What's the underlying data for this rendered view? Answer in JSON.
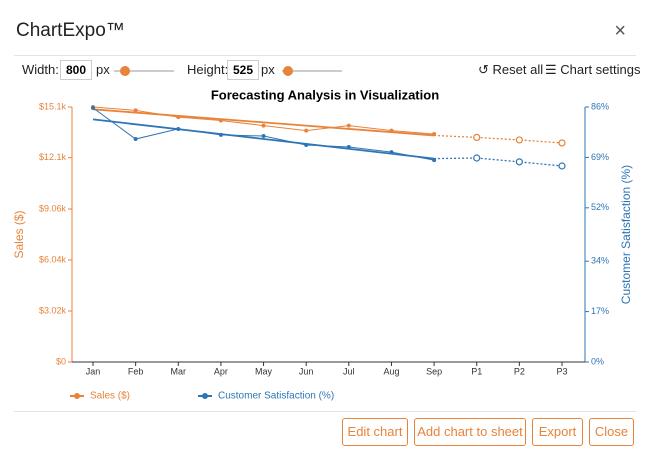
{
  "dialog": {
    "title": "ChartExpo™",
    "controls": {
      "width_label": "Width:",
      "width_value": "800",
      "width_unit": "px",
      "height_label": "Height:",
      "height_value": "525",
      "height_unit": "px",
      "reset": "Reset all",
      "settings": "Chart settings"
    },
    "buttons": [
      "Edit chart",
      "Add chart to sheet",
      "Export",
      "Close"
    ]
  },
  "chart_data": {
    "type": "line",
    "title": "Forecasting Analysis in Visualization",
    "y_label": "Sales ($)",
    "y2_label": "Customer Satisfaction (%)",
    "categories": [
      "Jan",
      "Feb",
      "Mar",
      "Apr",
      "May",
      "Jun",
      "Jul",
      "Aug",
      "Sep",
      "P1",
      "P2",
      "P3"
    ],
    "series": [
      {
        "name": "Sales ($)",
        "color": "#e8833a",
        "axis": "y",
        "values": [
          15100,
          14900,
          14500,
          14300,
          14000,
          13700,
          14000,
          13700,
          13500,
          null,
          null,
          null
        ],
        "forecast": [
          null,
          null,
          null,
          null,
          null,
          null,
          null,
          null,
          null,
          13300,
          13150,
          12970
        ]
      },
      {
        "name": "Customer Satisfaction (%)",
        "color": "#2e75b6",
        "axis": "y2",
        "values": [
          85.7,
          75.2,
          78.6,
          76.6,
          76.2,
          73.2,
          72.5,
          70.8,
          68.1,
          null,
          null,
          null
        ],
        "forecast": [
          null,
          null,
          null,
          null,
          null,
          null,
          null,
          null,
          null,
          68.8,
          67.5,
          66.1
        ]
      }
    ],
    "ylim": [
      0,
      15100
    ],
    "yticks": [
      {
        "value": 0,
        "label": "$0"
      },
      {
        "value": 3020,
        "label": "$3.02k"
      },
      {
        "value": 6040,
        "label": "$6.04k"
      },
      {
        "value": 9060,
        "label": "$9.06k"
      },
      {
        "value": 12100,
        "label": "$12.1k"
      },
      {
        "value": 15100,
        "label": "$15.1k"
      }
    ],
    "y2lim": [
      0,
      86
    ],
    "y2ticks": [
      {
        "value": 0,
        "label": "0%"
      },
      {
        "value": 17,
        "label": "17%"
      },
      {
        "value": 34,
        "label": "34%"
      },
      {
        "value": 52,
        "label": "52%"
      },
      {
        "value": 69,
        "label": "69%"
      },
      {
        "value": 86,
        "label": "86%"
      }
    ],
    "legend": "bottom-left"
  }
}
